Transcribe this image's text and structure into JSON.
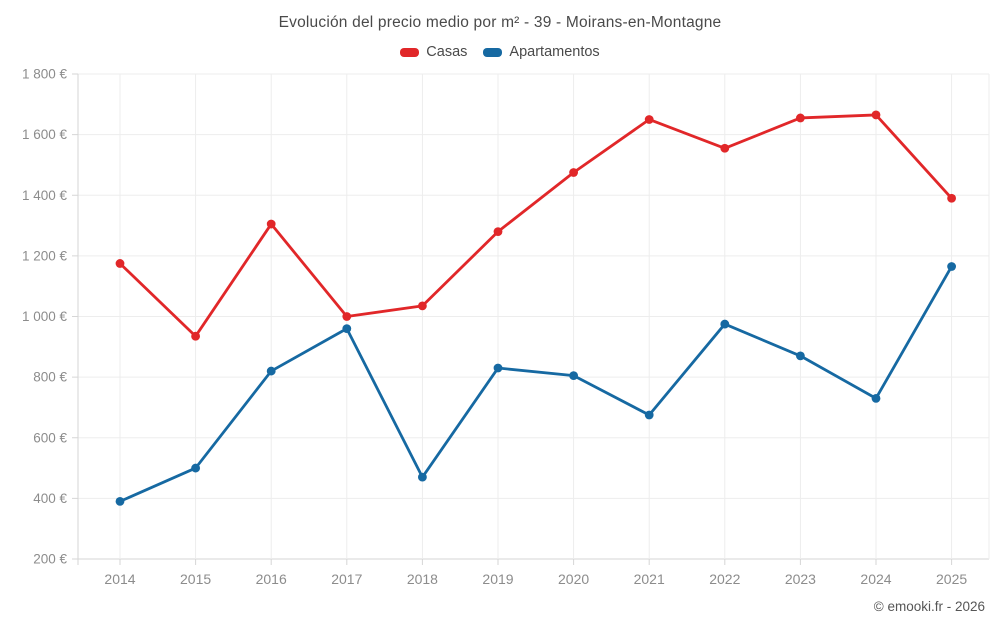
{
  "chart": {
    "title": "Evolución del precio medio por m² - 39 - Moirans-en-Montagne",
    "attribution": "© emooki.fr - 2026"
  },
  "chart_data": {
    "type": "line",
    "title": "Evolución del precio medio por m² - 39 - Moirans-en-Montagne",
    "categories": [
      "2014",
      "2015",
      "2016",
      "2017",
      "2018",
      "2019",
      "2020",
      "2021",
      "2022",
      "2023",
      "2024",
      "2025"
    ],
    "series": [
      {
        "name": "Casas",
        "color": "#e12729",
        "values": [
          1175,
          935,
          1305,
          1000,
          1035,
          1280,
          1475,
          1650,
          1555,
          1655,
          1665,
          1390
        ]
      },
      {
        "name": "Apartamentos",
        "color": "#1669a2",
        "values": [
          390,
          500,
          820,
          960,
          470,
          830,
          805,
          675,
          975,
          870,
          730,
          1165
        ]
      }
    ],
    "xlabel": "",
    "ylabel": "",
    "ylim": [
      200,
      1800
    ],
    "ytick_step": 200,
    "ytick_labels": [
      "200 €",
      "400 €",
      "600 €",
      "800 €",
      "1 000 €",
      "1 200 €",
      "1 400 €",
      "1 600 €",
      "1 800 €"
    ],
    "grid": true,
    "legend_position": "top",
    "colors": {
      "title_text": "#4a4a4a",
      "axis_text": "#8c8c8c",
      "gridline": "#ededed",
      "axis_border": "#d6d6d6",
      "background": "#ffffff"
    }
  }
}
